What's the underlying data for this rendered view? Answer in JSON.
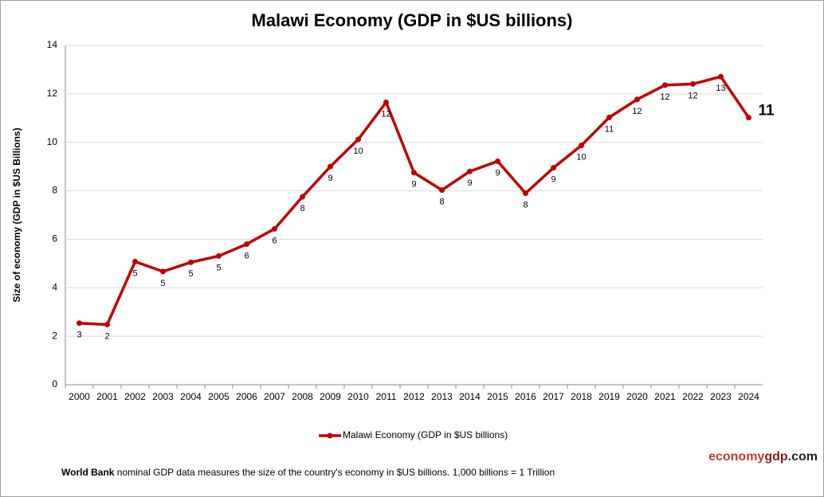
{
  "chart_data": {
    "type": "line",
    "title": "Malawi Economy (GDP in $US billions)",
    "y_label": "Size of economy (GDP in $US Billions)",
    "categories": [
      "2000",
      "2001",
      "2002",
      "2003",
      "2004",
      "2005",
      "2006",
      "2007",
      "2008",
      "2009",
      "2010",
      "2011",
      "2012",
      "2013",
      "2014",
      "2015",
      "2016",
      "2017",
      "2018",
      "2019",
      "2020",
      "2021",
      "2022",
      "2023",
      "2024"
    ],
    "series": [
      {
        "name": "Malawi Economy (GDP in $US billions)",
        "color": "#c00000",
        "values": [
          2.54,
          2.48,
          5.08,
          4.67,
          5.05,
          5.31,
          5.8,
          6.43,
          7.75,
          9.0,
          10.12,
          11.65,
          8.75,
          8.03,
          8.8,
          9.22,
          7.9,
          8.95,
          9.87,
          11.03,
          11.77,
          12.36,
          12.41,
          12.71,
          11.02
        ],
        "value_labels": [
          "3",
          "2",
          "5",
          "5",
          "5",
          "5",
          "6",
          "6",
          "8",
          "9",
          "10",
          "12",
          "9",
          "8",
          "9",
          "9",
          "8",
          "9",
          "10",
          "11",
          "12",
          "12",
          "12",
          "13",
          "11"
        ]
      }
    ],
    "ylim": [
      0,
      14
    ],
    "yticks": [
      0,
      2,
      4,
      6,
      8,
      10,
      12,
      14
    ],
    "grid": true,
    "legend": "bottom",
    "footer": {
      "source": "World Bank",
      "text": "nominal GDP data  measures the size of the country's economy in $US billions. 1,000 billions = 1 Trillion"
    },
    "brand": {
      "part1": "economy",
      "part2": "gdp",
      "part3": ".com"
    }
  }
}
